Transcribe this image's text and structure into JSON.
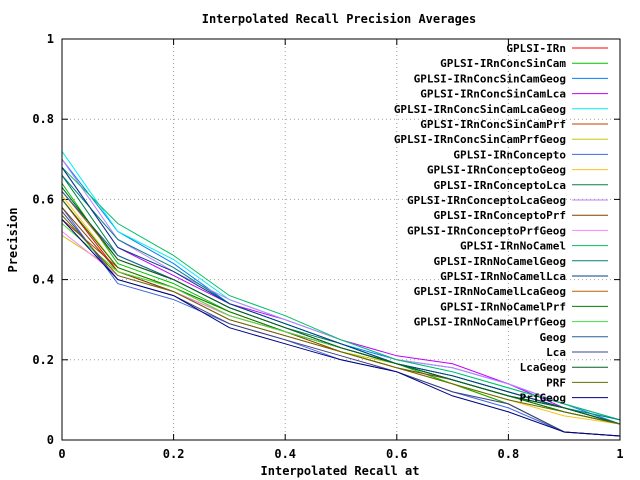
{
  "chart_data": {
    "type": "line",
    "title": "Interpolated Recall Precision Averages",
    "xlabel": "Interpolated Recall at",
    "ylabel": "Precision",
    "xlim": [
      0,
      1
    ],
    "ylim": [
      0,
      1
    ],
    "grid": true,
    "legend_position": "top-right",
    "x_ticks": [
      "0",
      "0.2",
      "0.4",
      "0.6",
      "0.8",
      "1"
    ],
    "y_ticks": [
      "0",
      "0.2",
      "0.4",
      "0.6",
      "0.8",
      "1"
    ],
    "x": [
      0,
      0.1,
      0.2,
      0.3,
      0.4,
      0.5,
      0.6,
      0.7,
      0.8,
      0.9,
      1.0
    ],
    "series": [
      {
        "name": "GPLSI-IRn",
        "color": "#ff0000",
        "values": [
          0.6,
          0.42,
          0.37,
          0.3,
          0.26,
          0.22,
          0.18,
          0.14,
          0.09,
          0.02,
          0.01
        ]
      },
      {
        "name": "GPLSI-IRnConcSinCam",
        "color": "#00c000",
        "values": [
          0.64,
          0.44,
          0.39,
          0.32,
          0.27,
          0.23,
          0.19,
          0.14,
          0.09,
          0.02,
          0.01
        ]
      },
      {
        "name": "GPLSI-IRnConcSinCamGeog",
        "color": "#0080ff",
        "values": [
          0.7,
          0.52,
          0.44,
          0.34,
          0.29,
          0.24,
          0.2,
          0.18,
          0.14,
          0.09,
          0.04
        ]
      },
      {
        "name": "GPLSI-IRnConcSinCamLca",
        "color": "#c000ff",
        "values": [
          0.68,
          0.48,
          0.41,
          0.34,
          0.3,
          0.25,
          0.21,
          0.19,
          0.14,
          0.08,
          0.04
        ]
      },
      {
        "name": "GPLSI-IRnConcSinCamLcaGeog",
        "color": "#00eeee",
        "values": [
          0.72,
          0.52,
          0.45,
          0.35,
          0.3,
          0.25,
          0.2,
          0.17,
          0.13,
          0.09,
          0.05
        ]
      },
      {
        "name": "GPLSI-IRnConcSinCamPrf",
        "color": "#c04000",
        "values": [
          0.55,
          0.43,
          0.38,
          0.32,
          0.27,
          0.23,
          0.19,
          0.15,
          0.11,
          0.08,
          0.04
        ]
      },
      {
        "name": "GPLSI-IRnConcSinCamPrfGeog",
        "color": "#c8c800",
        "values": [
          0.51,
          0.42,
          0.38,
          0.31,
          0.27,
          0.22,
          0.19,
          0.15,
          0.11,
          0.08,
          0.04
        ]
      },
      {
        "name": "GPLSI-IRnConcepto",
        "color": "#4169e1",
        "values": [
          0.58,
          0.39,
          0.35,
          0.29,
          0.25,
          0.2,
          0.17,
          0.12,
          0.08,
          0.02,
          0.01
        ]
      },
      {
        "name": "GPLSI-IRnConceptoGeog",
        "color": "#ffc020",
        "values": [
          0.61,
          0.43,
          0.38,
          0.31,
          0.27,
          0.22,
          0.18,
          0.14,
          0.1,
          0.06,
          0.04
        ]
      },
      {
        "name": "GPLSI-IRnConceptoLca",
        "color": "#008040",
        "values": [
          0.66,
          0.46,
          0.4,
          0.33,
          0.28,
          0.24,
          0.19,
          0.16,
          0.12,
          0.08,
          0.04
        ]
      },
      {
        "name": "GPLSI-IRnConceptoLcaGeog",
        "color": "#c080ff",
        "values": [
          0.7,
          0.5,
          0.42,
          0.35,
          0.3,
          0.25,
          0.2,
          0.18,
          0.14,
          0.09,
          0.05
        ]
      },
      {
        "name": "GPLSI-IRnConceptoPrf",
        "color": "#804000",
        "values": [
          0.58,
          0.42,
          0.37,
          0.31,
          0.27,
          0.22,
          0.18,
          0.15,
          0.11,
          0.07,
          0.04
        ]
      },
      {
        "name": "GPLSI-IRnConceptoPrfGeog",
        "color": "#ff80ff",
        "values": [
          0.52,
          0.41,
          0.37,
          0.31,
          0.27,
          0.23,
          0.19,
          0.15,
          0.11,
          0.08,
          0.04
        ]
      },
      {
        "name": "GPLSI-IRnNoCamel",
        "color": "#00c060",
        "values": [
          0.68,
          0.54,
          0.46,
          0.36,
          0.31,
          0.25,
          0.2,
          0.17,
          0.13,
          0.09,
          0.05
        ]
      },
      {
        "name": "GPLSI-IRnNoCamelGeog",
        "color": "#008080",
        "values": [
          0.66,
          0.5,
          0.43,
          0.34,
          0.29,
          0.24,
          0.19,
          0.16,
          0.12,
          0.08,
          0.05
        ]
      },
      {
        "name": "GPLSI-IRnNoCamelLca",
        "color": "#004080",
        "values": [
          0.68,
          0.48,
          0.42,
          0.34,
          0.29,
          0.24,
          0.19,
          0.16,
          0.12,
          0.08,
          0.04
        ]
      },
      {
        "name": "GPLSI-IRnNoCamelLcaGeog",
        "color": "#c06000",
        "values": [
          0.62,
          0.45,
          0.4,
          0.33,
          0.28,
          0.23,
          0.19,
          0.15,
          0.11,
          0.08,
          0.04
        ]
      },
      {
        "name": "GPLSI-IRnNoCamelPrf",
        "color": "#008000",
        "values": [
          0.6,
          0.43,
          0.38,
          0.32,
          0.27,
          0.23,
          0.19,
          0.15,
          0.11,
          0.07,
          0.04
        ]
      },
      {
        "name": "GPLSI-IRnNoCamelPrfGeog",
        "color": "#40e040",
        "values": [
          0.54,
          0.42,
          0.38,
          0.31,
          0.27,
          0.23,
          0.19,
          0.15,
          0.11,
          0.08,
          0.04
        ]
      },
      {
        "name": "Geog",
        "color": "#2060a0",
        "values": [
          0.62,
          0.46,
          0.4,
          0.33,
          0.28,
          0.23,
          0.19,
          0.15,
          0.11,
          0.08,
          0.04
        ]
      },
      {
        "name": "Lca",
        "color": "#404080",
        "values": [
          0.57,
          0.4,
          0.36,
          0.29,
          0.25,
          0.21,
          0.17,
          0.12,
          0.09,
          0.02,
          0.01
        ]
      },
      {
        "name": "LcaGeog",
        "color": "#006020",
        "values": [
          0.63,
          0.45,
          0.4,
          0.33,
          0.28,
          0.23,
          0.19,
          0.15,
          0.11,
          0.08,
          0.04
        ]
      },
      {
        "name": "PRF",
        "color": "#607000",
        "values": [
          0.56,
          0.41,
          0.37,
          0.3,
          0.26,
          0.22,
          0.18,
          0.14,
          0.1,
          0.07,
          0.04
        ]
      },
      {
        "name": "PrfGeog",
        "color": "#000080",
        "values": [
          0.55,
          0.4,
          0.36,
          0.28,
          0.24,
          0.2,
          0.17,
          0.11,
          0.07,
          0.02,
          0.01
        ]
      }
    ]
  }
}
